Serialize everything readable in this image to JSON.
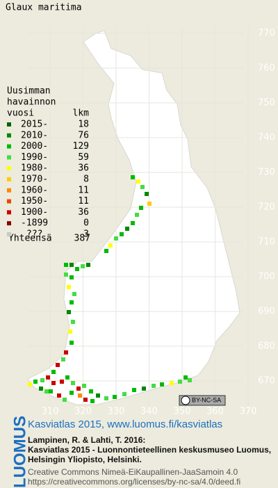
{
  "title": "Glaux maritima",
  "legend": {
    "heading": [
      "Uusimman",
      "havainnon",
      "vuosi"
    ],
    "count_header": "lkm",
    "rows": [
      {
        "label": "2015-",
        "count": 18,
        "color": "#006400"
      },
      {
        "label": "2010-",
        "count": 76,
        "color": "#008800"
      },
      {
        "label": "2000-",
        "count": 129,
        "color": "#00bb00"
      },
      {
        "label": "1990-",
        "count": 59,
        "color": "#44dd44"
      },
      {
        "label": "1980-",
        "count": 36,
        "color": "#ffff00"
      },
      {
        "label": "1970-",
        "count": 8,
        "color": "#ffcc00"
      },
      {
        "label": "1960-",
        "count": 11,
        "color": "#ff8800"
      },
      {
        "label": "1950-",
        "count": 11,
        "color": "#ee4400"
      },
      {
        "label": "1900-",
        "count": 36,
        "color": "#cc0000"
      },
      {
        "label": "-1899",
        "count": 0,
        "color": "#880000"
      },
      {
        "label": "???",
        "count": 3,
        "color": "#c8c8c8"
      }
    ],
    "total": {
      "label": "Yhteensä",
      "count": 387
    }
  },
  "grid": {
    "y_labels": [
      770,
      760,
      750,
      740,
      730,
      720,
      710,
      700,
      690,
      680,
      670
    ],
    "x_labels": [
      310,
      320,
      330,
      340,
      350,
      360,
      370
    ]
  },
  "footer": {
    "logo": "LUOMUS",
    "link": "Kasviatlas 2015, www.luomus.fi/kasviatlas",
    "citation": [
      "Lampinen, R. & Lahti, T. 2016:",
      "Kasviatlas 2015 - Luonnontieteellinen keskusmuseo Luomus,",
      "Helsingin Yliopisto, Helsinki."
    ],
    "license": [
      "Creative Commons Nimeä-EiKaupallinen-JaaSamoin 4.0",
      "https://creativecommons.org/licenses/by-nc-sa/4.0/deed.fi"
    ],
    "badge": "BY-NC-SA"
  }
}
